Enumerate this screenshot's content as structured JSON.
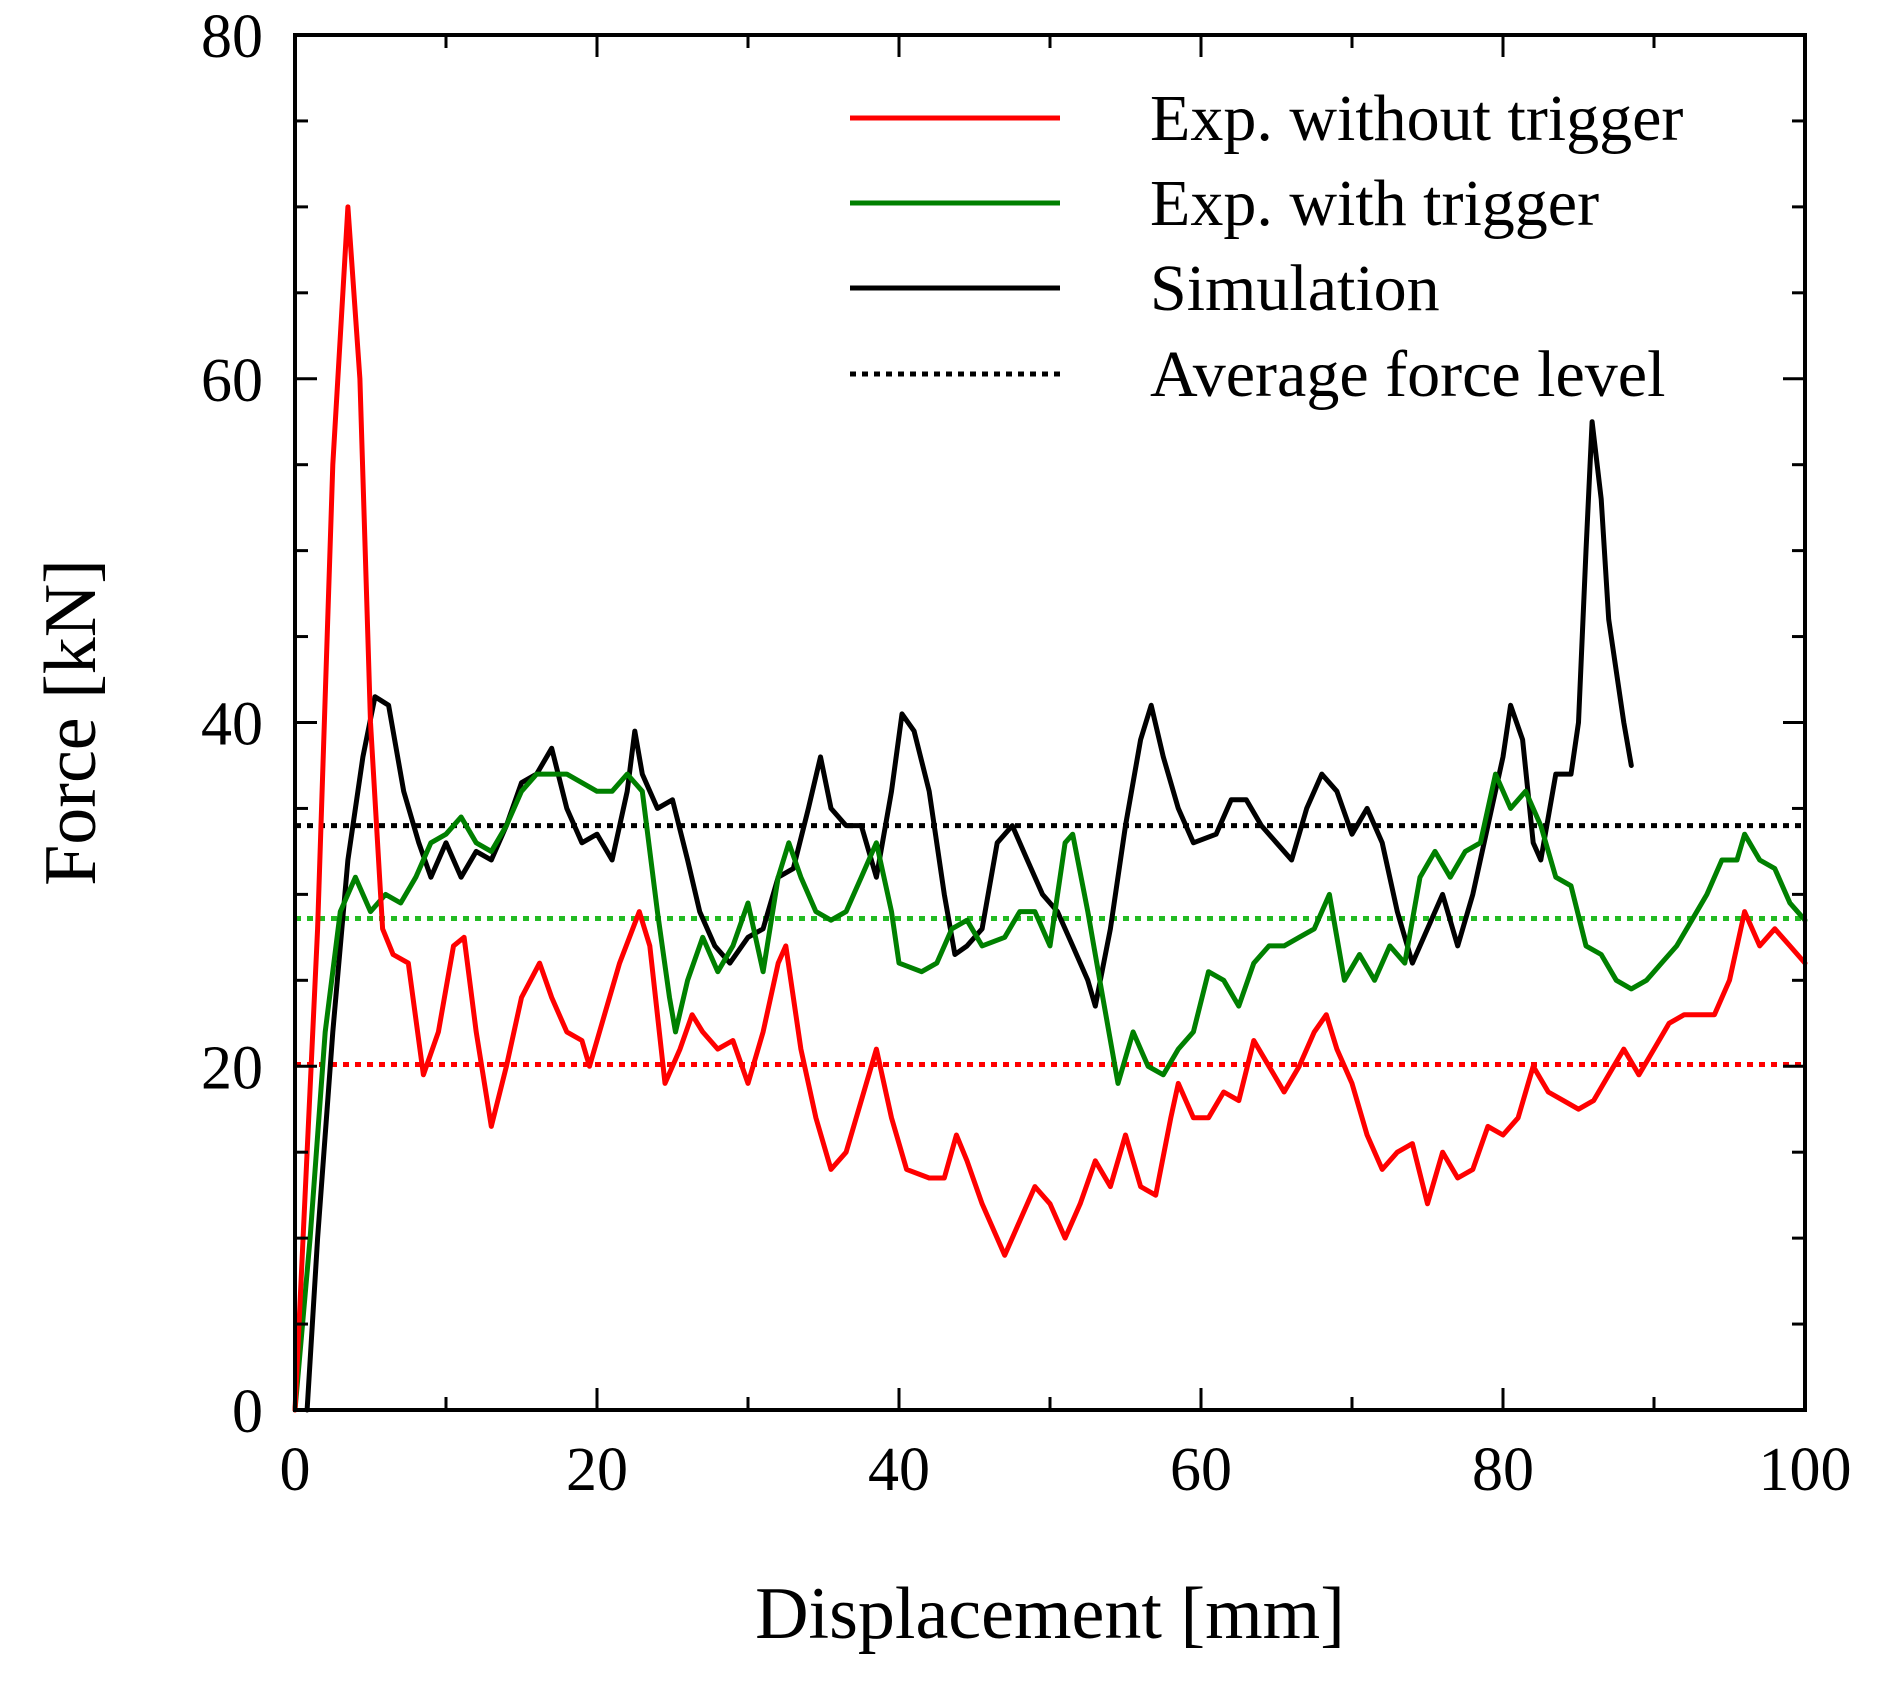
{
  "chart_data": {
    "type": "line",
    "title": "",
    "xlabel": "Displacement [mm]",
    "ylabel": "Force [kN]",
    "xlim": [
      0,
      100
    ],
    "ylim": [
      0,
      80
    ],
    "x_ticks": [
      0,
      20,
      40,
      60,
      80,
      100
    ],
    "x_tick_labels": [
      "0",
      "20",
      "40",
      "60",
      "80",
      "100"
    ],
    "y_ticks": [
      0,
      20,
      40,
      60,
      80
    ],
    "y_tick_labels": [
      "0",
      "20",
      "40",
      "60",
      "80"
    ],
    "grid": false,
    "legend_position": "top-right",
    "series": [
      {
        "name": "Exp. without trigger",
        "color": "#ff0000",
        "style": "solid",
        "points": [
          [
            0,
            0
          ],
          [
            1.5,
            28
          ],
          [
            2.5,
            55
          ],
          [
            3.5,
            70
          ],
          [
            4.3,
            60
          ],
          [
            5,
            40
          ],
          [
            5.8,
            28
          ],
          [
            6.5,
            26.5
          ],
          [
            7.5,
            26
          ],
          [
            8.5,
            19.5
          ],
          [
            9.5,
            22
          ],
          [
            10.5,
            27
          ],
          [
            11.2,
            27.5
          ],
          [
            12,
            22
          ],
          [
            13,
            16.5
          ],
          [
            14,
            20
          ],
          [
            15,
            24
          ],
          [
            16.2,
            26
          ],
          [
            17,
            24
          ],
          [
            18,
            22
          ],
          [
            19,
            21.5
          ],
          [
            19.5,
            20
          ],
          [
            20.5,
            23
          ],
          [
            21.5,
            26
          ],
          [
            22.8,
            29
          ],
          [
            23.5,
            27
          ],
          [
            24.5,
            19
          ],
          [
            25.5,
            21
          ],
          [
            26.3,
            23
          ],
          [
            27,
            22
          ],
          [
            28,
            21
          ],
          [
            29,
            21.5
          ],
          [
            30,
            19
          ],
          [
            31,
            22
          ],
          [
            32,
            26
          ],
          [
            32.5,
            27
          ],
          [
            33.5,
            21
          ],
          [
            34.5,
            17
          ],
          [
            35.5,
            14
          ],
          [
            36.5,
            15
          ],
          [
            37.5,
            18
          ],
          [
            38.5,
            21
          ],
          [
            39.5,
            17
          ],
          [
            40.5,
            14
          ],
          [
            42,
            13.5
          ],
          [
            43,
            13.5
          ],
          [
            43.8,
            16
          ],
          [
            44.5,
            14.5
          ],
          [
            45.5,
            12
          ],
          [
            46.5,
            10
          ],
          [
            47,
            9
          ],
          [
            48,
            11
          ],
          [
            49,
            13
          ],
          [
            50,
            12
          ],
          [
            51,
            10
          ],
          [
            52,
            12
          ],
          [
            53,
            14.5
          ],
          [
            54,
            13
          ],
          [
            55,
            16
          ],
          [
            56,
            13
          ],
          [
            57,
            12.5
          ],
          [
            58,
            17
          ],
          [
            58.5,
            19
          ],
          [
            59.5,
            17
          ],
          [
            60.5,
            17
          ],
          [
            61.5,
            18.5
          ],
          [
            62.5,
            18
          ],
          [
            63.5,
            21.5
          ],
          [
            64.5,
            20
          ],
          [
            65.5,
            18.5
          ],
          [
            66.5,
            20
          ],
          [
            67.5,
            22
          ],
          [
            68.3,
            23
          ],
          [
            69,
            21
          ],
          [
            70,
            19
          ],
          [
            71,
            16
          ],
          [
            72,
            14
          ],
          [
            73,
            15
          ],
          [
            74,
            15.5
          ],
          [
            75,
            12
          ],
          [
            76,
            15
          ],
          [
            77,
            13.5
          ],
          [
            78,
            14
          ],
          [
            79,
            16.5
          ],
          [
            80,
            16
          ],
          [
            81,
            17
          ],
          [
            82,
            20
          ],
          [
            83,
            18.5
          ],
          [
            84,
            18
          ],
          [
            85,
            17.5
          ],
          [
            86,
            18
          ],
          [
            87,
            19.5
          ],
          [
            88,
            21
          ],
          [
            89,
            19.5
          ],
          [
            90,
            21
          ],
          [
            91,
            22.5
          ],
          [
            92,
            23
          ],
          [
            93,
            23
          ],
          [
            94,
            23
          ],
          [
            95,
            25
          ],
          [
            96,
            29
          ],
          [
            97,
            27
          ],
          [
            98,
            28
          ],
          [
            99,
            27
          ],
          [
            100,
            26
          ]
        ]
      },
      {
        "name": "Exp. with trigger",
        "color": "#008000",
        "style": "solid",
        "points": [
          [
            0,
            0
          ],
          [
            1,
            10
          ],
          [
            2,
            22
          ],
          [
            3,
            29
          ],
          [
            4,
            31
          ],
          [
            5,
            29
          ],
          [
            6,
            30
          ],
          [
            7,
            29.5
          ],
          [
            8,
            31
          ],
          [
            9,
            33
          ],
          [
            10,
            33.5
          ],
          [
            11,
            34.5
          ],
          [
            12,
            33
          ],
          [
            13,
            32.5
          ],
          [
            14,
            34
          ],
          [
            15,
            36
          ],
          [
            16,
            37
          ],
          [
            17,
            37
          ],
          [
            18,
            37
          ],
          [
            19,
            36.5
          ],
          [
            20,
            36
          ],
          [
            21,
            36
          ],
          [
            22,
            37
          ],
          [
            23,
            36
          ],
          [
            24,
            29
          ],
          [
            24.8,
            24
          ],
          [
            25.2,
            22
          ],
          [
            26,
            25
          ],
          [
            27,
            27.5
          ],
          [
            28,
            25.5
          ],
          [
            29,
            27
          ],
          [
            30,
            29.5
          ],
          [
            31,
            25.5
          ],
          [
            32,
            31
          ],
          [
            32.7,
            33
          ],
          [
            33.5,
            31
          ],
          [
            34.5,
            29
          ],
          [
            35.5,
            28.5
          ],
          [
            36.5,
            29
          ],
          [
            37.5,
            31
          ],
          [
            38.5,
            33
          ],
          [
            39.5,
            29
          ],
          [
            40,
            26
          ],
          [
            41.5,
            25.5
          ],
          [
            42.5,
            26
          ],
          [
            43.5,
            28
          ],
          [
            44.5,
            28.5
          ],
          [
            45.5,
            27
          ],
          [
            47,
            27.5
          ],
          [
            48,
            29
          ],
          [
            49,
            29
          ],
          [
            50,
            27
          ],
          [
            51,
            33
          ],
          [
            51.5,
            33.5
          ],
          [
            52.5,
            29
          ],
          [
            53.5,
            24
          ],
          [
            54.5,
            19
          ],
          [
            55.5,
            22
          ],
          [
            56.5,
            20
          ],
          [
            57.5,
            19.5
          ],
          [
            58.5,
            21
          ],
          [
            59.5,
            22
          ],
          [
            60.5,
            25.5
          ],
          [
            61.5,
            25
          ],
          [
            62.5,
            23.5
          ],
          [
            63.5,
            26
          ],
          [
            64.5,
            27
          ],
          [
            65.5,
            27
          ],
          [
            66.5,
            27.5
          ],
          [
            67.5,
            28
          ],
          [
            68.5,
            30
          ],
          [
            69.5,
            25
          ],
          [
            70.5,
            26.5
          ],
          [
            71.5,
            25
          ],
          [
            72.5,
            27
          ],
          [
            73.5,
            26
          ],
          [
            74.5,
            31
          ],
          [
            75.5,
            32.5
          ],
          [
            76.5,
            31
          ],
          [
            77.5,
            32.5
          ],
          [
            78.5,
            33
          ],
          [
            79.5,
            37
          ],
          [
            80.5,
            35
          ],
          [
            81.5,
            36
          ],
          [
            82.5,
            34
          ],
          [
            83.5,
            31
          ],
          [
            84.5,
            30.5
          ],
          [
            85.5,
            27
          ],
          [
            86.5,
            26.5
          ],
          [
            87.5,
            25
          ],
          [
            88.5,
            24.5
          ],
          [
            89.5,
            25
          ],
          [
            90.5,
            26
          ],
          [
            91.5,
            27
          ],
          [
            92.5,
            28.5
          ],
          [
            93.5,
            30
          ],
          [
            94.5,
            32
          ],
          [
            95.5,
            32
          ],
          [
            96,
            33.5
          ],
          [
            97,
            32
          ],
          [
            98,
            31.5
          ],
          [
            99,
            29.5
          ],
          [
            100,
            28.5
          ]
        ]
      },
      {
        "name": "Simulation",
        "color": "#000000",
        "style": "solid",
        "points": [
          [
            0.8,
            0
          ],
          [
            1.5,
            10
          ],
          [
            2.5,
            22
          ],
          [
            3.5,
            32
          ],
          [
            4.5,
            38
          ],
          [
            5.3,
            41.5
          ],
          [
            6.2,
            41
          ],
          [
            7.2,
            36
          ],
          [
            8.2,
            33
          ],
          [
            9,
            31
          ],
          [
            10,
            33
          ],
          [
            11,
            31
          ],
          [
            12,
            32.5
          ],
          [
            13,
            32
          ],
          [
            14,
            34
          ],
          [
            15,
            36.5
          ],
          [
            16,
            37
          ],
          [
            17,
            38.5
          ],
          [
            18,
            35
          ],
          [
            19,
            33
          ],
          [
            20,
            33.5
          ],
          [
            21,
            32
          ],
          [
            22,
            36
          ],
          [
            22.5,
            39.5
          ],
          [
            23,
            37
          ],
          [
            24,
            35
          ],
          [
            25,
            35.5
          ],
          [
            26,
            32
          ],
          [
            26.8,
            29
          ],
          [
            27.8,
            27
          ],
          [
            28.8,
            26
          ],
          [
            30,
            27.5
          ],
          [
            31,
            28
          ],
          [
            32,
            31
          ],
          [
            33,
            31.5
          ],
          [
            34,
            35
          ],
          [
            34.8,
            38
          ],
          [
            35.5,
            35
          ],
          [
            36.5,
            34
          ],
          [
            37.5,
            34
          ],
          [
            38.5,
            31
          ],
          [
            39.5,
            36
          ],
          [
            40.2,
            40.5
          ],
          [
            41,
            39.5
          ],
          [
            42,
            36
          ],
          [
            43,
            30
          ],
          [
            43.7,
            26.5
          ],
          [
            44.5,
            27
          ],
          [
            45.5,
            28
          ],
          [
            46.5,
            33
          ],
          [
            47.5,
            34
          ],
          [
            48.5,
            32
          ],
          [
            49.5,
            30
          ],
          [
            50.5,
            29
          ],
          [
            51.5,
            27
          ],
          [
            52.5,
            25
          ],
          [
            53,
            23.5
          ],
          [
            54,
            28
          ],
          [
            55,
            34
          ],
          [
            56,
            39
          ],
          [
            56.7,
            41
          ],
          [
            57.5,
            38
          ],
          [
            58.5,
            35
          ],
          [
            59.5,
            33
          ],
          [
            61,
            33.5
          ],
          [
            62,
            35.5
          ],
          [
            63,
            35.5
          ],
          [
            64,
            34
          ],
          [
            65,
            33
          ],
          [
            66,
            32
          ],
          [
            67,
            35
          ],
          [
            68,
            37
          ],
          [
            69,
            36
          ],
          [
            70,
            33.5
          ],
          [
            71,
            35
          ],
          [
            72,
            33
          ],
          [
            73,
            29
          ],
          [
            74,
            26
          ],
          [
            75,
            28
          ],
          [
            76,
            30
          ],
          [
            77,
            27
          ],
          [
            78,
            30
          ],
          [
            79,
            34
          ],
          [
            80,
            38
          ],
          [
            80.5,
            41
          ],
          [
            81.3,
            39
          ],
          [
            82,
            33
          ],
          [
            82.5,
            32
          ],
          [
            83.5,
            37
          ],
          [
            84.5,
            37
          ],
          [
            85,
            40
          ],
          [
            85.5,
            50
          ],
          [
            85.9,
            57.5
          ],
          [
            86.5,
            53
          ],
          [
            87,
            46
          ],
          [
            88,
            40
          ],
          [
            88.5,
            37.5
          ]
        ]
      },
      {
        "name": "Average force level",
        "color": "#000000",
        "style": "dotted",
        "points": []
      }
    ],
    "reference_lines": [
      {
        "color": "#000000",
        "y": 34
      },
      {
        "color": "#22bb22",
        "y": 28.6
      },
      {
        "color": "#ff0000",
        "y": 20.1
      }
    ]
  }
}
